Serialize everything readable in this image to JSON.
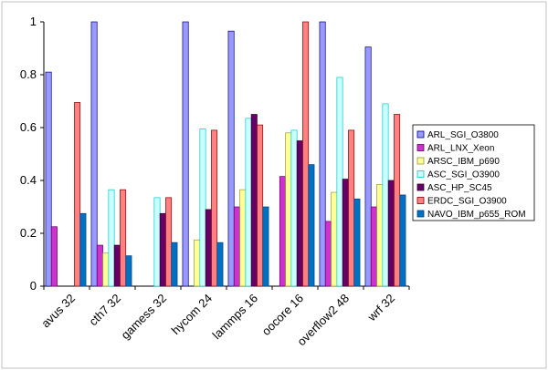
{
  "chart_data": {
    "type": "bar",
    "categories": [
      "avus 32",
      "cth7 32",
      "gamess 32",
      "hycom 24",
      "lammps 16",
      "oocore 16",
      "overflow2 48",
      "wrf 32"
    ],
    "series": [
      {
        "name": "ARL_SGI_O3800",
        "color": "#9999FF",
        "edge": "#000080",
        "values": [
          0.81,
          1.0,
          null,
          1.0,
          0.965,
          null,
          1.0,
          0.905
        ]
      },
      {
        "name": "ARL_LNX_Xeon",
        "color": "#CC33CC",
        "edge": "#660066",
        "values": [
          0.225,
          0.155,
          null,
          null,
          0.3,
          0.415,
          0.245,
          0.3
        ]
      },
      {
        "name": "ARSC_IBM_p690",
        "color": "#FFFF99",
        "edge": "#999933",
        "values": [
          null,
          0.125,
          null,
          0.175,
          0.365,
          0.58,
          0.355,
          0.385
        ]
      },
      {
        "name": "ASC_SGI_O3900",
        "color": "#CCFFFF",
        "edge": "#00CCCC",
        "values": [
          null,
          0.365,
          0.335,
          0.595,
          0.635,
          0.59,
          0.79,
          0.69
        ]
      },
      {
        "name": "ASC_HP_SC45",
        "color": "#660066",
        "edge": "#330033",
        "values": [
          null,
          0.155,
          0.275,
          0.29,
          0.65,
          0.55,
          0.405,
          0.4
        ]
      },
      {
        "name": "ERDC_SGI_O3900",
        "color": "#FF8080",
        "edge": "#800000",
        "values": [
          0.695,
          0.365,
          0.335,
          0.59,
          0.61,
          1.0,
          0.59,
          0.65
        ]
      },
      {
        "name": "NAVO_IBM_p655_ROM",
        "color": "#0070C0",
        "edge": "#004080",
        "values": [
          0.275,
          0.115,
          0.165,
          0.165,
          0.3,
          0.46,
          0.33,
          0.345
        ]
      }
    ],
    "ylim": [
      0,
      1
    ],
    "yticks": [
      "0",
      "0.2",
      "0.4",
      "0.6",
      "0.8",
      "1"
    ],
    "ytick_values": [
      0,
      0.2,
      0.4,
      0.6,
      0.8,
      1
    ],
    "legend_position": "right",
    "grid": false
  }
}
